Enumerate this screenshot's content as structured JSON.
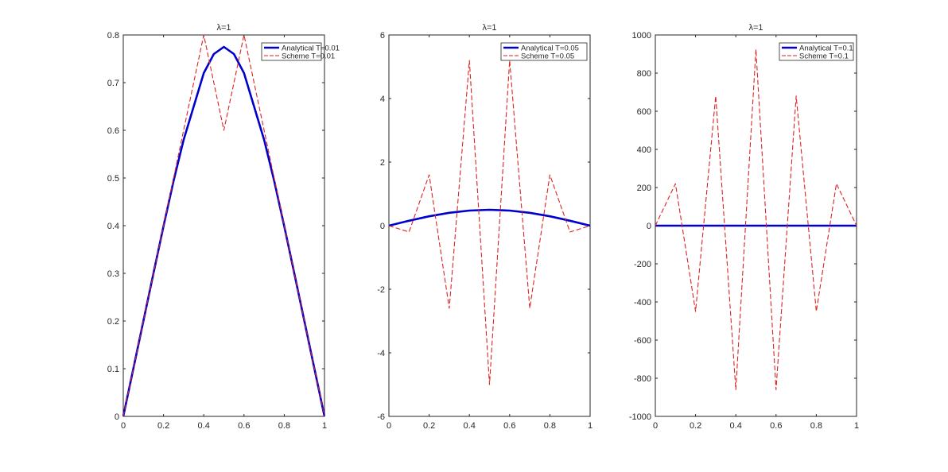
{
  "chart_data": [
    {
      "type": "line",
      "title": "λ=1",
      "xlabel": "",
      "ylabel": "",
      "xlim": [
        0,
        1
      ],
      "ylim": [
        0,
        0.8
      ],
      "xticks": [
        0,
        0.2,
        0.4,
        0.6,
        0.8,
        1
      ],
      "xtick_labels": [
        "0",
        "0.2",
        "0.4",
        "0.6",
        "0.8",
        "1"
      ],
      "yticks": [
        0,
        0.1,
        0.2,
        0.3,
        0.4,
        0.5,
        0.6,
        0.7,
        0.8
      ],
      "ytick_labels": [
        "0",
        "0.1",
        "0.2",
        "0.3",
        "0.4",
        "0.5",
        "0.6",
        "0.7",
        "0.8"
      ],
      "legend_position": "top-right",
      "grid": false,
      "series": [
        {
          "name": "Analytical T=0.01",
          "color": "#0000CC",
          "style": "solid",
          "x": [
            0,
            0.05,
            0.1,
            0.15,
            0.2,
            0.25,
            0.3,
            0.35,
            0.4,
            0.45,
            0.5,
            0.55,
            0.6,
            0.65,
            0.7,
            0.75,
            0.8,
            0.85,
            0.9,
            0.95,
            1
          ],
          "y": [
            0,
            0.1,
            0.2,
            0.3,
            0.399,
            0.494,
            0.58,
            0.65,
            0.72,
            0.76,
            0.775,
            0.76,
            0.72,
            0.65,
            0.58,
            0.494,
            0.399,
            0.3,
            0.2,
            0.1,
            0
          ]
        },
        {
          "name": "Scheme T=0.01",
          "color": "#DD2222",
          "style": "dashed",
          "x": [
            0,
            0.1,
            0.2,
            0.3,
            0.4,
            0.5,
            0.6,
            0.7,
            0.8,
            0.9,
            1
          ],
          "y": [
            0,
            0.2,
            0.4,
            0.6,
            0.8,
            0.6,
            0.8,
            0.6,
            0.4,
            0.2,
            0
          ]
        }
      ]
    },
    {
      "type": "line",
      "title": "λ=1",
      "xlabel": "",
      "ylabel": "",
      "xlim": [
        0,
        1
      ],
      "ylim": [
        -6,
        6
      ],
      "xticks": [
        0,
        0.2,
        0.4,
        0.6,
        0.8,
        1
      ],
      "xtick_labels": [
        "0",
        "0.2",
        "0.4",
        "0.6",
        "0.8",
        "1"
      ],
      "yticks": [
        -6,
        -4,
        -2,
        0,
        2,
        4,
        6
      ],
      "ytick_labels": [
        "-6",
        "-4",
        "-2",
        "0",
        "2",
        "4",
        "6"
      ],
      "legend_position": "top-right",
      "grid": false,
      "series": [
        {
          "name": "Analytical T=0.05",
          "color": "#0000CC",
          "style": "solid",
          "x": [
            0,
            0.1,
            0.2,
            0.3,
            0.4,
            0.5,
            0.6,
            0.7,
            0.8,
            0.9,
            1
          ],
          "y": [
            0,
            0.155,
            0.295,
            0.405,
            0.475,
            0.5,
            0.475,
            0.405,
            0.295,
            0.155,
            0
          ]
        },
        {
          "name": "Scheme T=0.05",
          "color": "#DD2222",
          "style": "dashed",
          "x": [
            0,
            0.1,
            0.2,
            0.3,
            0.4,
            0.5,
            0.6,
            0.7,
            0.8,
            0.9,
            1
          ],
          "y": [
            0,
            -0.2,
            1.6,
            -2.6,
            5.2,
            -5.0,
            5.2,
            -2.6,
            1.6,
            -0.2,
            0
          ]
        }
      ]
    },
    {
      "type": "line",
      "title": "λ=1",
      "xlabel": "",
      "ylabel": "",
      "xlim": [
        0,
        1
      ],
      "ylim": [
        -1000,
        1000
      ],
      "xticks": [
        0,
        0.2,
        0.4,
        0.6,
        0.8,
        1
      ],
      "xtick_labels": [
        "0",
        "0.2",
        "0.4",
        "0.6",
        "0.8",
        "1"
      ],
      "yticks": [
        -1000,
        -800,
        -600,
        -400,
        -200,
        0,
        200,
        400,
        600,
        800,
        1000
      ],
      "ytick_labels": [
        "-1000",
        "-800",
        "-600",
        "-400",
        "-200",
        "0",
        "200",
        "400",
        "600",
        "800",
        "1000"
      ],
      "legend_position": "top-right",
      "grid": false,
      "series": [
        {
          "name": "Analytical T=0.1",
          "color": "#0000CC",
          "style": "solid",
          "x": [
            0,
            0.5,
            1
          ],
          "y": [
            0,
            0,
            0
          ]
        },
        {
          "name": "Scheme T=0.1",
          "color": "#DD2222",
          "style": "dashed",
          "x": [
            0,
            0.1,
            0.2,
            0.3,
            0.4,
            0.5,
            0.6,
            0.7,
            0.8,
            0.9,
            1
          ],
          "y": [
            0,
            220,
            -450,
            680,
            -860,
            925,
            -860,
            680,
            -450,
            220,
            0
          ]
        }
      ]
    }
  ]
}
